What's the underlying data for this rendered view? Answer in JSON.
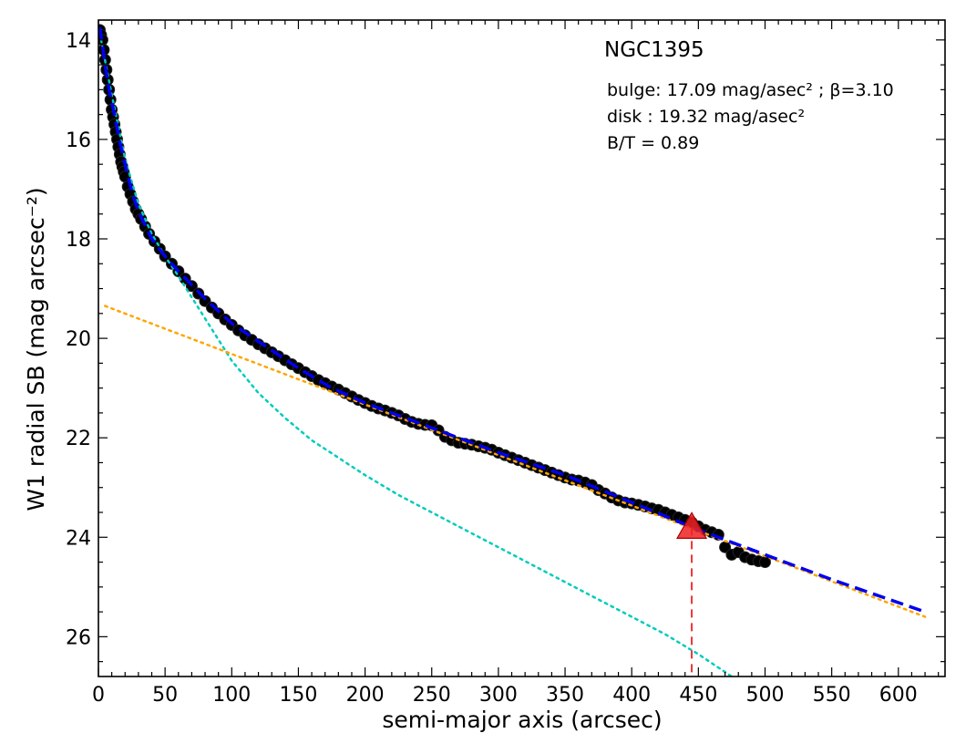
{
  "chart_data": {
    "type": "line",
    "title": "NGC1395",
    "xlabel": "semi-major axis (arcsec)",
    "ylabel": "W1 radial SB (mag arcsec⁻²)",
    "xlim": [
      0,
      635
    ],
    "ylim": [
      26.8,
      13.6
    ],
    "y_inverted": true,
    "grid": false,
    "x_ticks": [
      0,
      50,
      100,
      150,
      200,
      250,
      300,
      350,
      400,
      450,
      500,
      550,
      600
    ],
    "y_ticks": [
      14,
      16,
      18,
      20,
      22,
      24,
      26
    ],
    "annotations": [
      "bulge: 17.09 mag/asec² ; β=3.10",
      "disk  : 19.32 mag/asec²",
      "B/T = 0.89"
    ],
    "series": [
      {
        "kind": "observed",
        "color": "#000000",
        "x": [
          1,
          2,
          3,
          4,
          5,
          6,
          7,
          8,
          9,
          10,
          11,
          12,
          13,
          14,
          15,
          16,
          17,
          18,
          19,
          20,
          22,
          24,
          26,
          28,
          30,
          32,
          35,
          38,
          42,
          46,
          50,
          55,
          60,
          65,
          70,
          75,
          80,
          85,
          90,
          95,
          100,
          105,
          110,
          115,
          120,
          125,
          130,
          135,
          140,
          145,
          150,
          155,
          160,
          165,
          170,
          175,
          180,
          185,
          190,
          195,
          200,
          205,
          210,
          215,
          220,
          225,
          230,
          235,
          240,
          245,
          250,
          255,
          260,
          265,
          270,
          275,
          280,
          285,
          290,
          295,
          300,
          305,
          310,
          315,
          320,
          325,
          330,
          335,
          340,
          345,
          350,
          355,
          360,
          365,
          370,
          375,
          380,
          385,
          390,
          395,
          400,
          405,
          410,
          415,
          420,
          425,
          430,
          435,
          440,
          445,
          450,
          455,
          460,
          465,
          470,
          475,
          480,
          485,
          490,
          495,
          500
        ],
        "y": [
          13.8,
          13.9,
          14.0,
          14.2,
          14.4,
          14.6,
          14.8,
          15.0,
          15.2,
          15.4,
          15.55,
          15.7,
          15.85,
          16.0,
          16.15,
          16.3,
          16.45,
          16.55,
          16.65,
          16.75,
          16.95,
          17.1,
          17.25,
          17.4,
          17.5,
          17.6,
          17.75,
          17.9,
          18.05,
          18.2,
          18.35,
          18.5,
          18.65,
          18.8,
          18.95,
          19.1,
          19.25,
          19.38,
          19.5,
          19.62,
          19.73,
          19.84,
          19.94,
          20.03,
          20.12,
          20.2,
          20.28,
          20.36,
          20.44,
          20.52,
          20.6,
          20.68,
          20.76,
          20.84,
          20.9,
          20.97,
          21.03,
          21.1,
          21.17,
          21.24,
          21.3,
          21.36,
          21.41,
          21.45,
          21.5,
          21.55,
          21.62,
          21.68,
          21.72,
          21.74,
          21.75,
          21.85,
          21.98,
          22.05,
          22.1,
          22.12,
          22.14,
          22.17,
          22.2,
          22.24,
          22.3,
          22.35,
          22.4,
          22.45,
          22.5,
          22.55,
          22.6,
          22.65,
          22.7,
          22.75,
          22.8,
          22.84,
          22.86,
          22.9,
          22.95,
          23.05,
          23.12,
          23.2,
          23.26,
          23.3,
          23.32,
          23.35,
          23.38,
          23.42,
          23.45,
          23.5,
          23.55,
          23.6,
          23.65,
          23.7,
          23.78,
          23.85,
          23.9,
          23.95,
          24.2,
          24.35,
          24.3,
          24.4,
          24.45,
          24.48,
          24.5
        ]
      },
      {
        "kind": "total-model",
        "color": "#0000ee",
        "x": [
          1,
          3,
          5,
          8,
          12,
          16,
          20,
          25,
          30,
          40,
          50,
          60,
          80,
          100,
          125,
          150,
          175,
          200,
          250,
          300,
          350,
          400,
          450,
          500,
          550,
          620
        ],
        "y": [
          13.75,
          14.1,
          14.5,
          15.0,
          15.5,
          16.05,
          16.5,
          17.05,
          17.45,
          18.0,
          18.35,
          18.65,
          19.2,
          19.7,
          20.15,
          20.6,
          21.0,
          21.3,
          21.8,
          22.3,
          22.75,
          23.3,
          23.85,
          24.35,
          24.85,
          25.5
        ]
      },
      {
        "kind": "bulge-model",
        "color": "#00ccbb",
        "x": [
          2,
          10,
          20,
          30,
          40,
          50,
          60,
          80,
          100,
          120,
          140,
          160,
          180,
          200,
          225,
          250,
          275,
          300,
          325,
          350,
          375,
          400,
          425,
          450,
          475
        ],
        "y": [
          14.0,
          15.1,
          16.4,
          17.3,
          17.9,
          18.35,
          18.75,
          19.6,
          20.45,
          21.1,
          21.6,
          22.05,
          22.4,
          22.75,
          23.15,
          23.5,
          23.85,
          24.2,
          24.55,
          24.9,
          25.25,
          25.6,
          25.95,
          26.35,
          26.8
        ]
      },
      {
        "kind": "disk-model",
        "color": "#ffa500",
        "x": [
          5,
          620
        ],
        "y": [
          19.35,
          25.6
        ]
      }
    ],
    "marker": {
      "x": 445,
      "y": 23.8,
      "color": "#ee2222",
      "shape": "triangle"
    }
  }
}
